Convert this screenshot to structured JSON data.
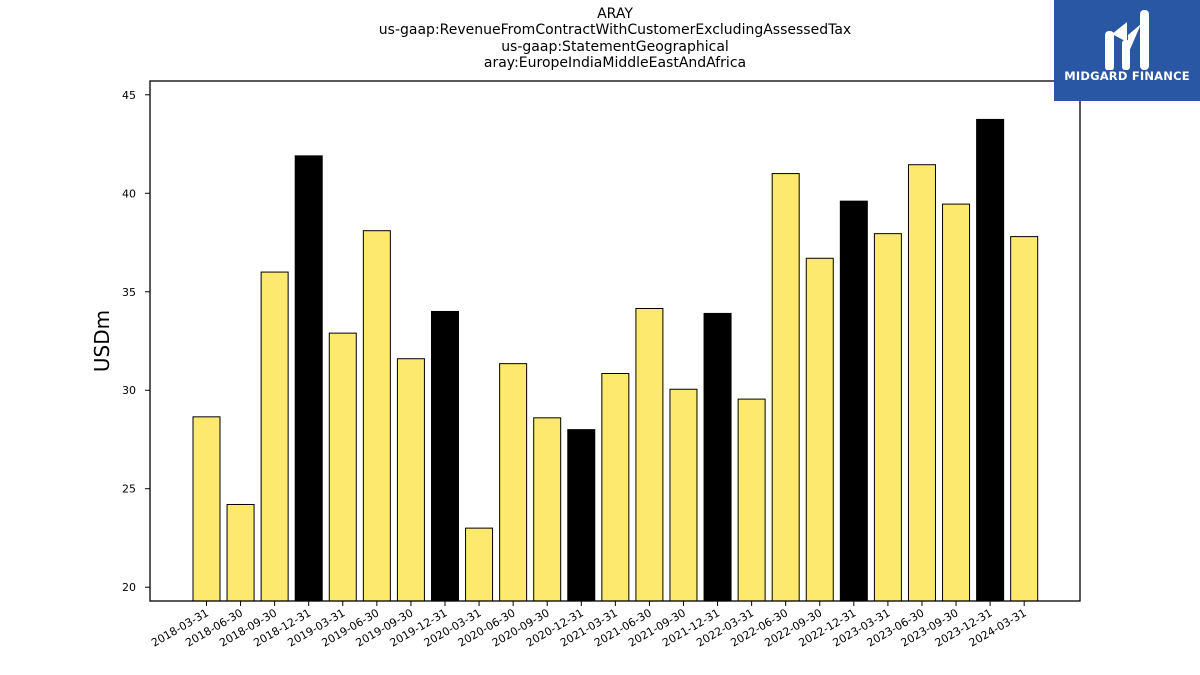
{
  "chart_data": {
    "type": "bar",
    "title_lines": [
      "ARAY",
      "us-gaap:RevenueFromContractWithCustomerExcludingAssessedTax",
      "us-gaap:StatementGeographical",
      "aray:EuropeIndiaMiddleEastAndAfrica"
    ],
    "xlabel": "",
    "ylabel": "USDm",
    "ylim": [
      19.3,
      45.7
    ],
    "yticks": [
      20,
      25,
      30,
      35,
      40,
      45
    ],
    "grid": false,
    "categories": [
      "2018-03-31",
      "2018-06-30",
      "2018-09-30",
      "2018-12-31",
      "2019-03-31",
      "2019-06-30",
      "2019-09-30",
      "2019-12-31",
      "2020-03-31",
      "2020-06-30",
      "2020-09-30",
      "2020-12-31",
      "2021-03-31",
      "2021-06-30",
      "2021-09-30",
      "2021-12-31",
      "2022-03-31",
      "2022-06-30",
      "2022-09-30",
      "2022-12-31",
      "2023-03-31",
      "2023-06-30",
      "2023-09-30",
      "2023-12-31",
      "2024-03-31"
    ],
    "values": [
      28.65,
      24.2,
      36.0,
      41.9,
      32.9,
      38.1,
      31.6,
      34.0,
      23.0,
      31.35,
      28.6,
      28.0,
      30.85,
      34.15,
      30.05,
      33.9,
      29.55,
      41.0,
      36.7,
      39.6,
      37.95,
      41.45,
      39.45,
      43.75,
      37.8
    ],
    "bar_colors": {
      "default": "#fde96e",
      "fiscal_year_end": "#000000",
      "edge": "#000000"
    },
    "highlight_categories": [
      "2018-12-31",
      "2019-12-31",
      "2020-12-31",
      "2021-12-31",
      "2022-12-31",
      "2023-12-31"
    ]
  },
  "logo": {
    "text": "MIDGARD FINANCE",
    "background": "#2957a4"
  }
}
